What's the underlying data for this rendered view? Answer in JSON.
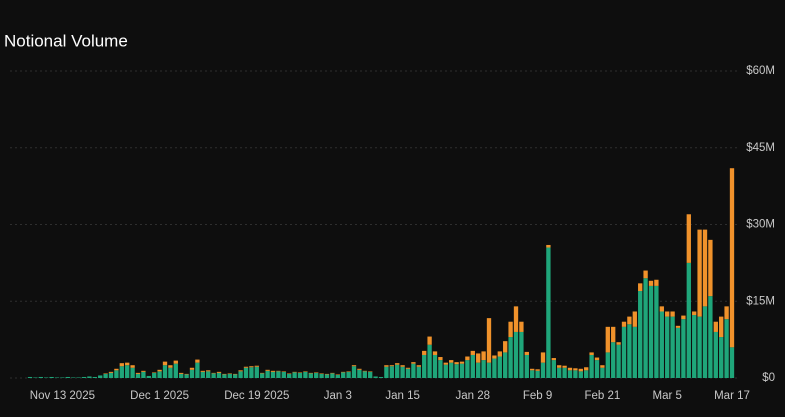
{
  "chart_data": {
    "type": "stacked-bar",
    "title": "Notional Volume",
    "categories": [
      null,
      null,
      null,
      null,
      null,
      null,
      "Nov 13 2025",
      null,
      null,
      null,
      null,
      null,
      null,
      null,
      null,
      null,
      null,
      null,
      null,
      null,
      null,
      null,
      null,
      null,
      "Dec 1 2025",
      null,
      null,
      null,
      null,
      null,
      null,
      null,
      null,
      null,
      null,
      null,
      null,
      null,
      null,
      null,
      null,
      null,
      "Dec 19 2025",
      null,
      null,
      null,
      null,
      null,
      null,
      null,
      null,
      null,
      null,
      null,
      null,
      null,
      null,
      "Jan 3",
      null,
      null,
      null,
      null,
      null,
      null,
      null,
      null,
      null,
      null,
      null,
      "Jan 15",
      null,
      null,
      null,
      null,
      null,
      null,
      null,
      null,
      null,
      null,
      null,
      null,
      "Jan 28",
      null,
      null,
      null,
      null,
      null,
      null,
      null,
      null,
      null,
      null,
      null,
      "Feb 9",
      null,
      null,
      null,
      null,
      null,
      null,
      null,
      null,
      null,
      null,
      null,
      "Feb 21",
      null,
      null,
      null,
      null,
      null,
      null,
      null,
      null,
      null,
      null,
      null,
      "Mar 5",
      null,
      null,
      null,
      null,
      null,
      null,
      null,
      null,
      null,
      null,
      null,
      "Mar 17"
    ],
    "series": [
      {
        "color": "#1fa67a",
        "values": [
          0.2,
          0.1,
          0.2,
          0.1,
          0.2,
          0.1,
          0.1,
          0.2,
          0.1,
          0.1,
          0.2,
          0.3,
          0.2,
          0.5,
          0.8,
          1,
          1.5,
          2.3,
          2.5,
          2,
          0.8,
          1.2,
          0.4,
          1,
          1.3,
          2.5,
          2,
          2.8,
          0.8,
          0.7,
          1.6,
          3,
          1.2,
          1.3,
          0.9,
          1,
          0.7,
          0.8,
          0.7,
          1.3,
          2,
          2.1,
          2.2,
          0.9,
          1.4,
          1.2,
          1.3,
          1.2,
          0.8,
          1.1,
          1,
          1.2,
          0.9,
          1,
          0.8,
          0.7,
          0.9,
          0.6,
          1.1,
          1.2,
          2.3,
          1.6,
          1.3,
          1.2,
          0.3,
          0.2,
          2.2,
          2.3,
          2.6,
          2.2,
          1.8,
          2.8,
          2.2,
          4.5,
          6.5,
          4.5,
          3.5,
          2.6,
          3,
          2.7,
          2.8,
          3.5,
          4.5,
          3,
          3.5,
          3,
          3.8,
          4.2,
          5,
          8,
          9,
          9,
          4.5,
          1.5,
          1.4,
          3,
          25.5,
          3.5,
          2,
          2,
          1.5,
          1.5,
          1.3,
          1.5,
          4.5,
          3.5,
          2,
          5,
          7,
          6.5,
          10,
          10.5,
          10,
          17,
          19.5,
          18,
          18,
          13,
          12,
          12,
          9.8,
          11.5,
          22.5,
          12.3,
          12,
          14,
          16,
          9,
          8,
          11.5,
          6
        ]
      },
      {
        "color": "#f0922b",
        "values": [
          0,
          0,
          0,
          0,
          0,
          0,
          0,
          0,
          0,
          0,
          0,
          0,
          0,
          0,
          0.1,
          0.2,
          0.3,
          0.6,
          0.5,
          0.5,
          0.2,
          0.2,
          0,
          0.1,
          0.3,
          0.7,
          0.5,
          0.6,
          0.2,
          0.1,
          0.4,
          0.6,
          0.2,
          0.2,
          0.1,
          0.2,
          0.1,
          0.1,
          0.1,
          0.2,
          0.2,
          0.2,
          0.2,
          0.1,
          0.2,
          0.2,
          0.1,
          0.1,
          0.1,
          0.1,
          0.1,
          0.1,
          0.1,
          0.1,
          0.1,
          0.1,
          0.1,
          0.1,
          0.1,
          0.1,
          0.2,
          0.2,
          0.1,
          0.1,
          0,
          0,
          0.3,
          0.2,
          0.3,
          0.3,
          0.2,
          0.3,
          0.3,
          0.8,
          1.6,
          0.7,
          0.6,
          0.4,
          0.5,
          0.4,
          0.4,
          0.7,
          0.8,
          1.8,
          1.7,
          8.7,
          0.6,
          1,
          2.2,
          3,
          5,
          2,
          0.6,
          0.3,
          0.3,
          2,
          0.5,
          0.4,
          0.5,
          0.4,
          0.5,
          0.4,
          0.5,
          0.6,
          0.5,
          0.5,
          0.5,
          5,
          3,
          0.5,
          1,
          1.5,
          3,
          1.5,
          1.5,
          1,
          1.2,
          1,
          1,
          1,
          0.4,
          0.7,
          9.5,
          0.7,
          17,
          15,
          11,
          2,
          4,
          2.5,
          35
        ]
      }
    ],
    "ylim": [
      0,
      60
    ],
    "yticks": [
      {
        "value": 0,
        "label": "$0"
      },
      {
        "value": 15,
        "label": "$15M"
      },
      {
        "value": 30,
        "label": "$30M"
      },
      {
        "value": 45,
        "label": "$45M"
      },
      {
        "value": 60,
        "label": "$60M"
      }
    ],
    "grid": true
  }
}
